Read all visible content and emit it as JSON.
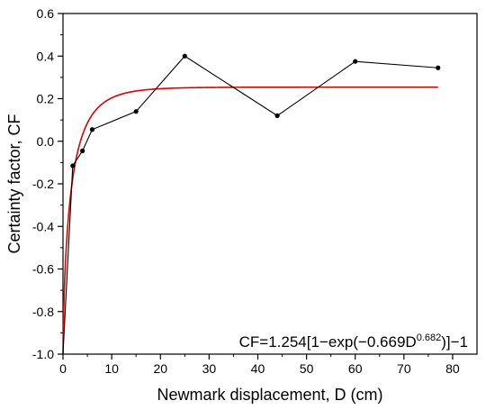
{
  "chart_data": {
    "type": "line",
    "xlabel": "Newmark displacement, D (cm)",
    "ylabel": "Certainty factor, CF",
    "xlim": [
      0,
      85
    ],
    "ylim": [
      -1.0,
      0.6
    ],
    "x_ticks": [
      0,
      10,
      20,
      30,
      40,
      50,
      60,
      70,
      80
    ],
    "y_ticks": [
      -1.0,
      -0.8,
      -0.6,
      -0.4,
      -0.2,
      0.0,
      0.2,
      0.4,
      0.6
    ],
    "x_tick_labels": [
      "0",
      "10",
      "20",
      "30",
      "40",
      "50",
      "60",
      "70",
      "80"
    ],
    "y_tick_labels": [
      "-1.0",
      "-0.8",
      "-0.6",
      "-0.4",
      "-0.2",
      "0.0",
      "0.2",
      "0.4",
      "0.6"
    ],
    "grid": false,
    "series": [
      {
        "type": "line-markers",
        "color": "#000000",
        "x": [
          0,
          2,
          4,
          6,
          15,
          25,
          44,
          60,
          77
        ],
        "y": [
          -1.0,
          -0.115,
          -0.045,
          0.055,
          0.14,
          0.4,
          0.12,
          0.375,
          0.345
        ]
      },
      {
        "type": "fit-curve",
        "color": "#e00000",
        "x_range": [
          0,
          77
        ],
        "equation_coefficients": {
          "a": 1.254,
          "b": 0.669,
          "c": 0.682,
          "d": 1
        }
      }
    ],
    "annotation": {
      "prefix": "CF=1.254[1−exp(−0.669D",
      "superscript": "0.682",
      "suffix": ")]−1"
    }
  }
}
